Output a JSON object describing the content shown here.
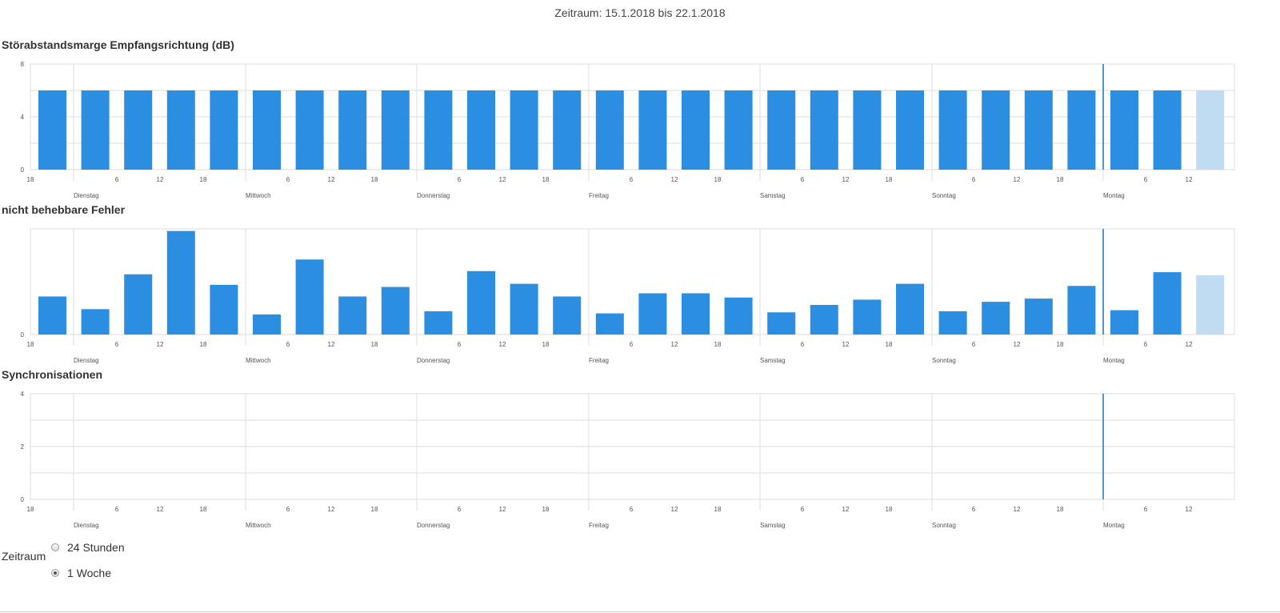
{
  "header": {
    "period": "Zeitraum: 15.1.2018 bis 22.1.2018"
  },
  "colors": {
    "bar": "#2b8ee0",
    "bar_forecast": "#bfdcf3",
    "now_line": "#1f72b8",
    "grid": "#dddddd"
  },
  "x_axis": {
    "hour_ticks": [
      "18",
      "6",
      "12",
      "18",
      "6",
      "12",
      "18",
      "6",
      "12",
      "18",
      "6",
      "12",
      "18",
      "6",
      "12",
      "18",
      "6",
      "12",
      "18",
      "6",
      "12"
    ],
    "day_labels": [
      "Dienstag",
      "Mittwoch",
      "Donnerstag",
      "Freitag",
      "Samstag",
      "Sonntag",
      "Montag"
    ]
  },
  "charts": [
    {
      "title": "Störabstandsmarge Empfangsrichtung (dB)",
      "y_ticks": [
        "8",
        "4",
        "0"
      ],
      "chart_data": {
        "type": "bar",
        "title": "Störabstandsmarge Empfangsrichtung (dB)",
        "ylim": [
          0,
          8
        ],
        "values": [
          6,
          6,
          6,
          6,
          6,
          6,
          6,
          6,
          6,
          6,
          6,
          6,
          6,
          6,
          6,
          6,
          6,
          6,
          6,
          6,
          6,
          6,
          6,
          6,
          6,
          6,
          6,
          6
        ],
        "last_bar_partial": true
      }
    },
    {
      "title": "nicht behebbare Fehler",
      "y_ticks": [
        "0"
      ],
      "chart_data": {
        "type": "bar",
        "title": "nicht behebbare Fehler",
        "ylim": [
          0,
          1
        ],
        "values": [
          0.36,
          0.24,
          0.57,
          0.98,
          0.47,
          0.19,
          0.71,
          0.36,
          0.45,
          0.22,
          0.6,
          0.48,
          0.36,
          0.2,
          0.39,
          0.39,
          0.35,
          0.21,
          0.28,
          0.33,
          0.48,
          0.22,
          0.31,
          0.34,
          0.46,
          0.23,
          0.59,
          0.56
        ],
        "last_bar_partial": true
      }
    },
    {
      "title": "Synchronisationen",
      "y_ticks": [
        "4",
        "2",
        "0"
      ],
      "chart_data": {
        "type": "bar",
        "title": "Synchronisationen",
        "ylim": [
          0,
          4
        ],
        "values": [
          0,
          0,
          0,
          0,
          0,
          0,
          0,
          0,
          0,
          0,
          0,
          0,
          0,
          0,
          0,
          0,
          0,
          0,
          0,
          0,
          0,
          0,
          0,
          0,
          0,
          0,
          0,
          0
        ]
      }
    }
  ],
  "controls": {
    "range_label": "Zeitraum",
    "options": [
      {
        "label": "24 Stunden",
        "checked": false
      },
      {
        "label": "1 Woche",
        "checked": true
      }
    ]
  }
}
